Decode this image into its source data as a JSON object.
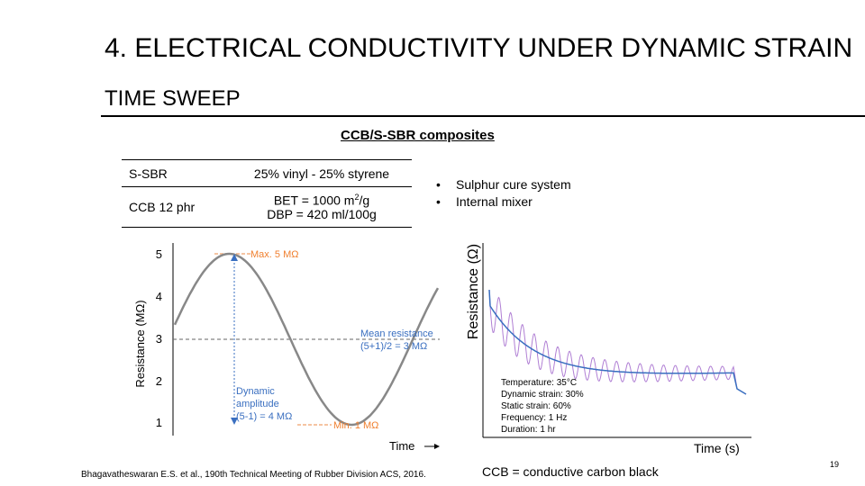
{
  "slide": {
    "title": "4. ELECTRICAL CONDUCTIVITY UNDER DYNAMIC STRAIN",
    "subtitle": "TIME SWEEP",
    "heading": "CCB/S-SBR composites",
    "table": {
      "rows": [
        {
          "label": "S-SBR",
          "value": "25% vinyl - 25% styrene"
        },
        {
          "label": "CCB 12 phr",
          "value_line1_pre": "BET = 1000 m",
          "value_line1_sup": "2",
          "value_line1_post": "/g",
          "value_line2": "DBP = 420 ml/100g"
        }
      ]
    },
    "bullets": [
      "Sulphur cure system",
      "Internal mixer"
    ],
    "citation": "Bhagavatheswaran E.S. et al., 190th Technical Meeting of Rubber Division ACS, 2016.",
    "note": "CCB = conductive carbon black",
    "page_number": "19"
  },
  "chart_data": [
    {
      "type": "line",
      "xlabel": "Time",
      "ylabel": "Resistance (MΩ)",
      "yticks": [
        "1",
        "2",
        "3",
        "4",
        "5"
      ],
      "ylim": [
        1,
        5
      ],
      "series": [
        {
          "values": [
            3,
            5,
            3,
            1,
            3
          ]
        }
      ],
      "annotations": {
        "max": "Max. 5 MΩ",
        "min": "Min. 1 MΩ",
        "mean_1": "Mean resistance",
        "mean_2": "(5+1)/2 = 3 MΩ",
        "amp_1": "Dynamic",
        "amp_2": "amplitude",
        "amp_3": "(5-1) = 4 MΩ"
      },
      "colors": {
        "curve": "#888888",
        "guide": "#3a6fc0",
        "marker": "#f4b183",
        "annot": "#3a6fc0"
      }
    },
    {
      "type": "line",
      "xlabel": "Time (s)",
      "ylabel": "Resistance (Ω)",
      "annotations": [
        "Temperature: 35°C",
        "Dynamic strain: 30%",
        "Static strain: 60%",
        "Frequency: 1 Hz",
        "Duration: 1 hr"
      ],
      "colors": {
        "oscillation": "#b07fd4",
        "mean": "#3a6fc0"
      }
    }
  ]
}
